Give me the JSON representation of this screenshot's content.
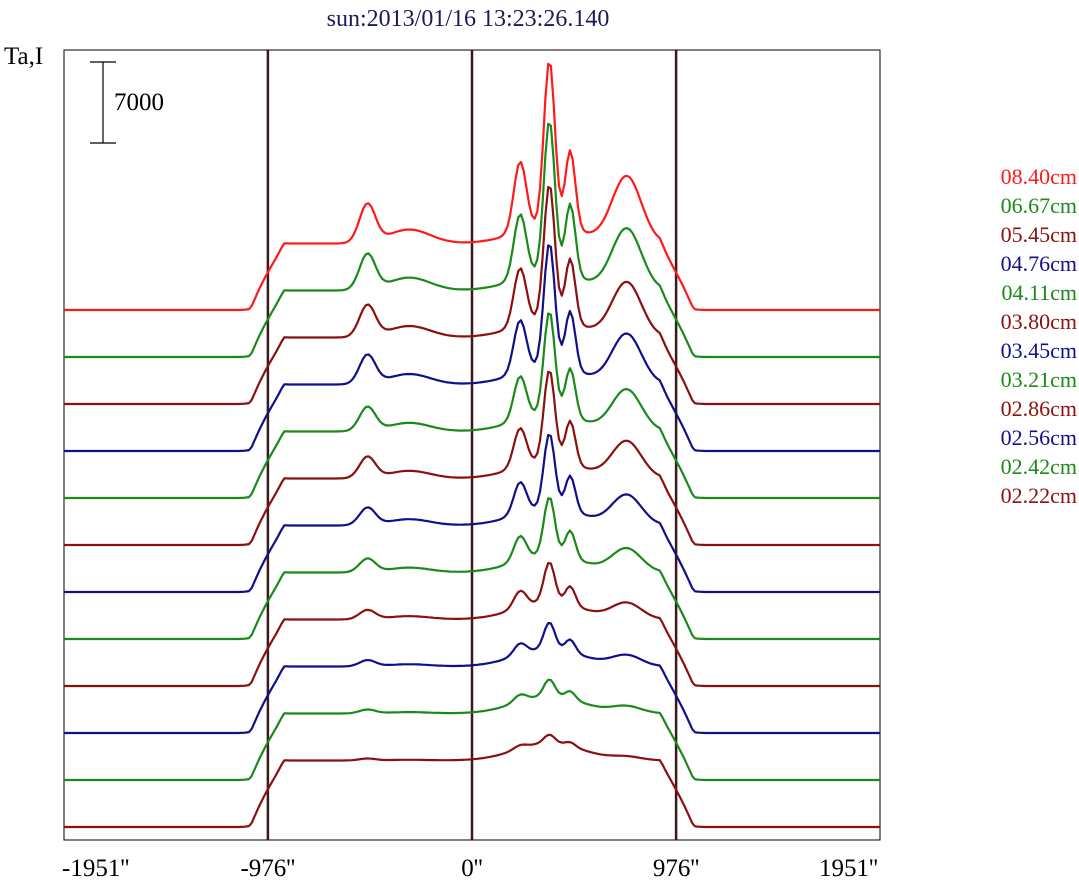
{
  "chart_data": {
    "type": "line",
    "title": "sun:2013/01/16 13:23:26.140",
    "ylabel": "Ta,I",
    "scale_bar_label": "7000",
    "x_tick_labels": [
      "-1951''",
      "-976''",
      "0''",
      "976''",
      "1951''"
    ],
    "x_ticks": [
      -1951,
      -976,
      0,
      976,
      1951
    ],
    "xlim": [
      -1951,
      1951
    ],
    "vertical_lines_at": [
      -976,
      0,
      976
    ],
    "series": [
      {
        "name": "08.40cm",
        "color": "#ff1a1a",
        "peak": 1.0
      },
      {
        "name": "06.67cm",
        "color": "#1a8a1a",
        "peak": 0.92
      },
      {
        "name": "05.45cm",
        "color": "#8b1010",
        "peak": 0.82
      },
      {
        "name": "04.76cm",
        "color": "#101088",
        "peak": 0.75
      },
      {
        "name": "04.11cm",
        "color": "#1a8a1a",
        "peak": 0.62
      },
      {
        "name": "03.80cm",
        "color": "#8b1010",
        "peak": 0.55
      },
      {
        "name": "03.45cm",
        "color": "#101088",
        "peak": 0.45
      },
      {
        "name": "03.21cm",
        "color": "#1a8a1a",
        "peak": 0.35
      },
      {
        "name": "02.86cm",
        "color": "#8b1010",
        "peak": 0.24
      },
      {
        "name": "02.56cm",
        "color": "#101088",
        "peak": 0.16
      },
      {
        "name": "02.42cm",
        "color": "#1a8a1a",
        "peak": 0.1
      },
      {
        "name": "02.22cm",
        "color": "#8b1010",
        "peak": 0.05
      }
    ]
  }
}
